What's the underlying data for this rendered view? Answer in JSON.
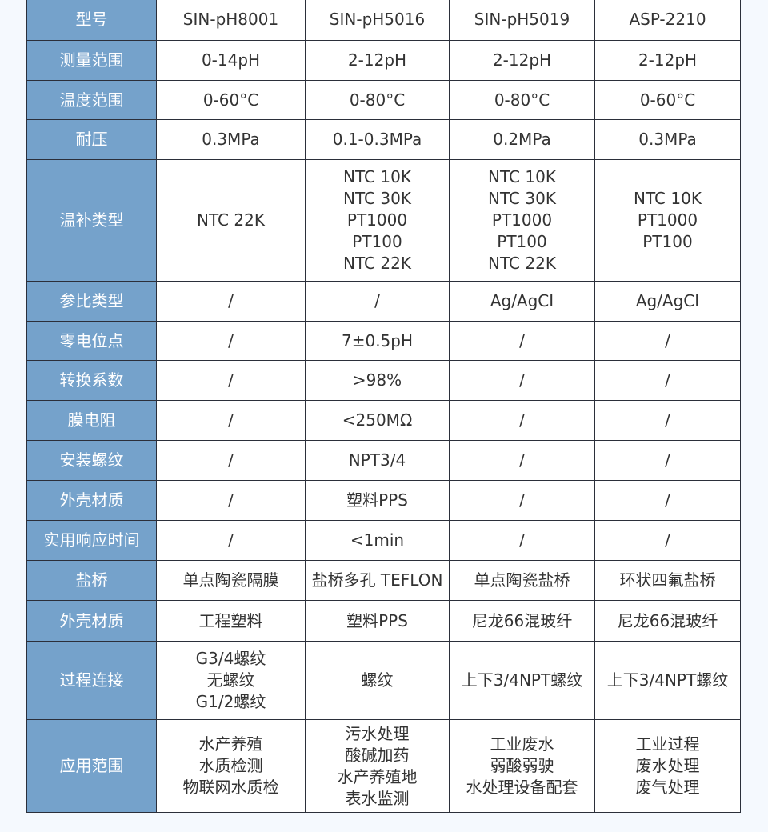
{
  "rows": [
    {
      "label": "型号",
      "values": [
        "SIN-pH8001",
        "SIN-pH5016",
        "SIN-pH5019",
        "ASP-2210"
      ]
    },
    {
      "label": "测量范围",
      "values": [
        "0-14pH",
        "2-12pH",
        "2-12pH",
        "2-12pH"
      ]
    },
    {
      "label": "温度范围",
      "values": [
        "0-60°C",
        "0-80°C",
        "0-80°C",
        "0-60°C"
      ]
    },
    {
      "label": "耐压",
      "values": [
        "0.3MPa",
        "0.1-0.3MPa",
        "0.2MPa",
        "0.3MPa"
      ]
    },
    {
      "label": "温补类型",
      "values": [
        "NTC 22K",
        "NTC 10K\nNTC 30K\nPT1000\nPT100\nNTC 22K",
        "NTC 10K\nNTC 30K\nPT1000\nPT100\nNTC 22K",
        "NTC 10K\nPT1000\nPT100"
      ]
    },
    {
      "label": "参比类型",
      "values": [
        "/",
        "/",
        "Ag/AgCI",
        "Ag/AgCI"
      ]
    },
    {
      "label": "零电位点",
      "values": [
        "/",
        "7±0.5pH",
        "/",
        "/"
      ]
    },
    {
      "label": "转换系数",
      "values": [
        "/",
        ">98%",
        "/",
        "/"
      ]
    },
    {
      "label": "膜电阻",
      "values": [
        "/",
        "<250MΩ",
        "/",
        "/"
      ]
    },
    {
      "label": "安装螺纹",
      "values": [
        "/",
        "NPT3/4",
        "/",
        "/"
      ]
    },
    {
      "label": "外壳材质",
      "values": [
        "/",
        "塑料PPS",
        "/",
        "/"
      ]
    },
    {
      "label": "实用响应时间",
      "values": [
        "/",
        "<1min",
        "/",
        "/"
      ]
    },
    {
      "label": "盐桥",
      "values": [
        "单点陶瓷隔膜",
        "盐桥多孔 TEFLON",
        "单点陶瓷盐桥",
        "环状四氟盐桥"
      ]
    },
    {
      "label": "外壳材质",
      "values": [
        "工程塑料",
        "塑料PPS",
        "尼龙66混玻纤",
        "尼龙66混玻纤"
      ]
    },
    {
      "label": "过程连接",
      "values": [
        "G3/4螺纹\n无螺纹\nG1/2螺纹",
        "螺纹",
        "上下3/4NPT螺纹",
        "上下3/4NPT螺纹"
      ]
    },
    {
      "label": "应用范围",
      "values": [
        "水产养殖\n水质检测\n物联网水质检",
        "污水处理\n酸碱加药\n水产养殖地\n表水监测",
        "工业废水\n弱酸弱驶\n水处理设备配套",
        "工业过程\n废水处理\n废气处理"
      ]
    }
  ],
  "colors": {
    "header": "#75a2cb",
    "background": "#f5f9fe",
    "border": "#2b2f3a"
  }
}
